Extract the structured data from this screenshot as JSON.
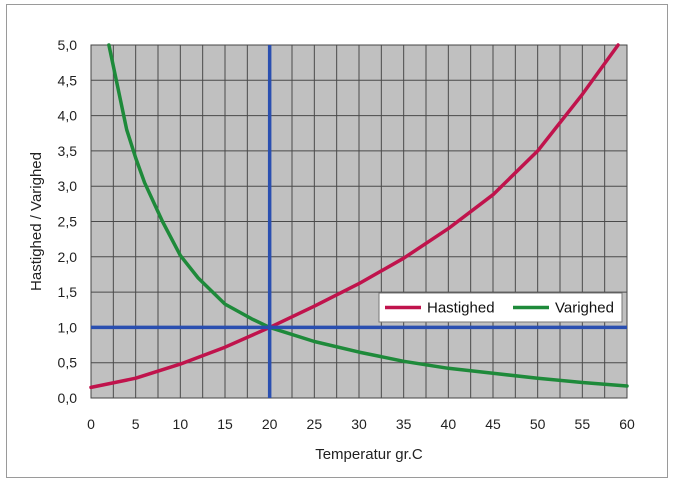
{
  "chart_data": {
    "type": "line",
    "title": "",
    "xlabel": "Temperatur gr.C",
    "ylabel": "Hastighed / Varighed",
    "xlim": [
      0,
      60
    ],
    "ylim": [
      0,
      5
    ],
    "xticks": [
      "0",
      "5",
      "10",
      "15",
      "20",
      "25",
      "30",
      "35",
      "40",
      "45",
      "50",
      "55",
      "60"
    ],
    "yticks": [
      "0,0",
      "0,5",
      "1,0",
      "1,5",
      "2,0",
      "2,5",
      "3,0",
      "3,5",
      "4,0",
      "4,5",
      "5,0"
    ],
    "grid": true,
    "legend_position": "right-center",
    "reference_lines": {
      "x": 20,
      "y": 1.0,
      "color": "#2a4fb0"
    },
    "series": [
      {
        "name": "Hastighed",
        "color": "#c0134c",
        "x": [
          0,
          5,
          10,
          15,
          20,
          25,
          30,
          35,
          40,
          45,
          50,
          55,
          59
        ],
        "y": [
          0.15,
          0.28,
          0.48,
          0.72,
          1.0,
          1.3,
          1.62,
          1.98,
          2.4,
          2.88,
          3.5,
          4.3,
          5.0
        ]
      },
      {
        "name": "Varighed",
        "color": "#1e8a3a",
        "x": [
          2,
          3,
          4,
          5,
          6,
          8,
          10,
          12,
          15,
          18,
          20,
          25,
          30,
          35,
          40,
          45,
          50,
          55,
          60
        ],
        "y": [
          5.0,
          4.4,
          3.8,
          3.4,
          3.05,
          2.5,
          2.02,
          1.7,
          1.33,
          1.12,
          1.0,
          0.8,
          0.65,
          0.52,
          0.42,
          0.35,
          0.28,
          0.22,
          0.17
        ]
      }
    ]
  }
}
